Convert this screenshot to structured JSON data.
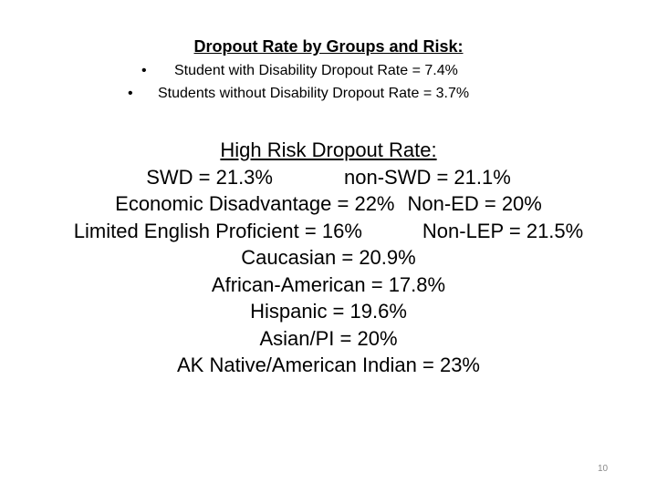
{
  "title": "Dropout Rate by Groups and Risk:",
  "bullets": [
    {
      "marker": "•",
      "text": "Student with Disability Dropout Rate = 7.4%"
    },
    {
      "marker": "•",
      "text": "Students without Disability Dropout Rate = 3.7%"
    }
  ],
  "high_risk": {
    "heading": "High Risk Dropout Rate:",
    "pairs": [
      {
        "left": "SWD = 21.3%",
        "right": "non-SWD = 21.1%"
      },
      {
        "left": "Economic Disadvantage = 22%",
        "right": "Non-ED = 20%"
      },
      {
        "left": "Limited English Proficient = 16%",
        "right": "Non-LEP = 21.5%"
      }
    ],
    "lines": [
      "Caucasian = 20.9%",
      "African-American = 17.8%",
      "Hispanic = 19.6%",
      "Asian/PI = 20%",
      "AK Native/American Indian = 23%"
    ]
  },
  "page_number": "10"
}
